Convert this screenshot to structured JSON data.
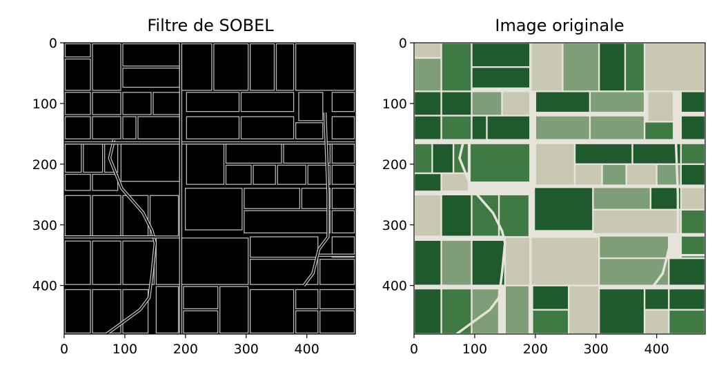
{
  "chart_data": [
    {
      "type": "image",
      "title": "Filtre de SOBEL",
      "xticks": [
        "0",
        "100",
        "200",
        "300",
        "400"
      ],
      "yticks": [
        "0",
        "100",
        "200",
        "300",
        "400"
      ],
      "xlim": [
        0,
        480
      ],
      "ylim": [
        480,
        0
      ],
      "image_style": "grayscale edge map (white field boundaries on black)"
    },
    {
      "type": "image",
      "title": "Image originale",
      "xticks": [
        "0",
        "100",
        "200",
        "300",
        "400"
      ],
      "yticks": [
        "0",
        "100",
        "200",
        "300",
        "400"
      ],
      "xlim": [
        0,
        480
      ],
      "ylim": [
        480,
        0
      ],
      "image_style": "aerial photo of agricultural fields (greens and beige)"
    }
  ],
  "colors": {
    "sobel_background": "#000000",
    "sobel_edge": "#d8d8d8",
    "photo_dark_green": "#1f5a2c",
    "photo_mid_green": "#3f7a45",
    "photo_light_green": "#7e9e78",
    "photo_beige": "#c9c8b3",
    "road": "#e6e4da"
  }
}
